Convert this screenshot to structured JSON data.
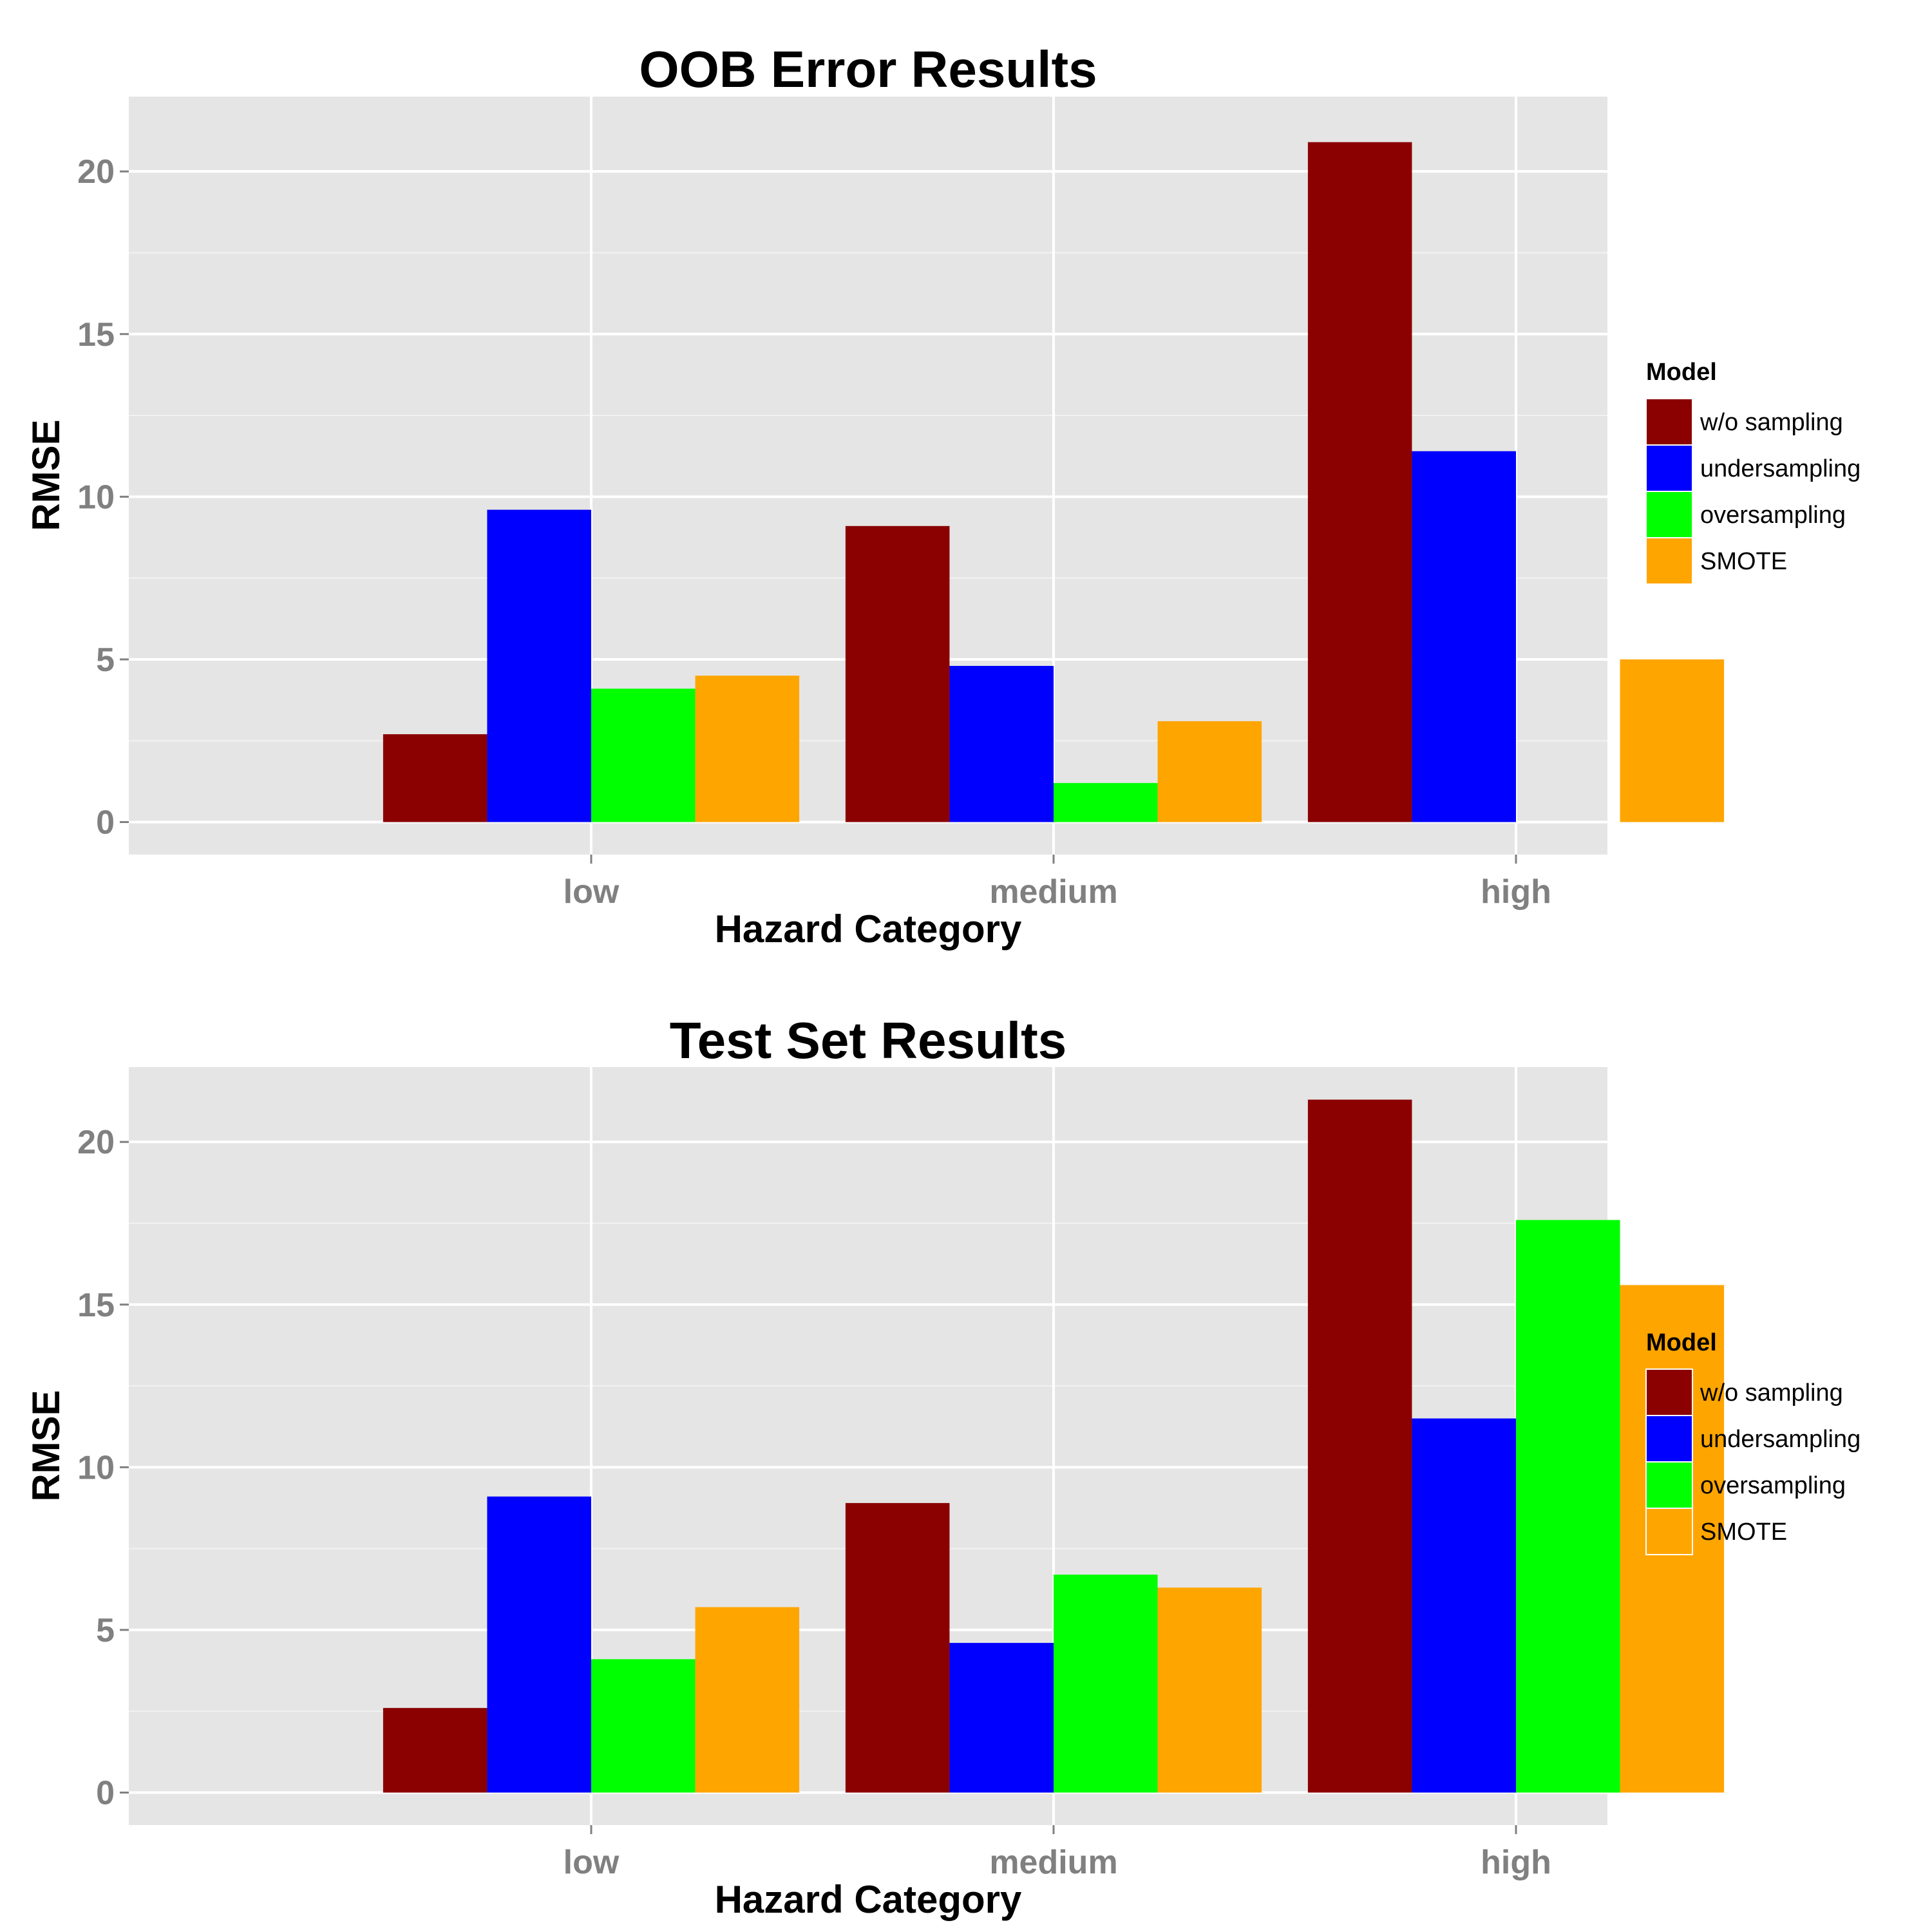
{
  "chart_data": [
    {
      "type": "bar",
      "title": "OOB Error Results",
      "xlabel": "Hazard Category",
      "ylabel": "RMSE",
      "categories": [
        "low",
        "medium",
        "high"
      ],
      "ylim": [
        -1,
        22.3
      ],
      "yticks": [
        0,
        5,
        10,
        15,
        20
      ],
      "grid": true,
      "legend_title": "Model",
      "legend_position": "right",
      "series": [
        {
          "name": "w/o sampling",
          "color": "#8B0000",
          "values": [
            2.7,
            9.1,
            20.9
          ]
        },
        {
          "name": "undersampling",
          "color": "#0000FF",
          "values": [
            9.6,
            4.8,
            11.4
          ]
        },
        {
          "name": "oversampling",
          "color": "#00FF00",
          "values": [
            4.1,
            1.2,
            0
          ]
        },
        {
          "name": "SMOTE",
          "color": "#FFA500",
          "values": [
            4.5,
            3.1,
            5.0
          ]
        }
      ]
    },
    {
      "type": "bar",
      "title": "Test Set Results",
      "xlabel": "Hazard Category",
      "ylabel": "RMSE",
      "categories": [
        "low",
        "medium",
        "high"
      ],
      "ylim": [
        -1,
        22.3
      ],
      "yticks": [
        0,
        5,
        10,
        15,
        20
      ],
      "grid": true,
      "legend_title": "Model",
      "legend_position": "right",
      "series": [
        {
          "name": "w/o sampling",
          "color": "#8B0000",
          "values": [
            2.6,
            8.9,
            21.3
          ]
        },
        {
          "name": "undersampling",
          "color": "#0000FF",
          "values": [
            9.1,
            4.6,
            11.5
          ]
        },
        {
          "name": "oversampling",
          "color": "#00FF00",
          "values": [
            4.1,
            6.7,
            17.6
          ]
        },
        {
          "name": "SMOTE",
          "color": "#FFA500",
          "values": [
            5.7,
            6.3,
            15.6
          ]
        }
      ]
    }
  ]
}
